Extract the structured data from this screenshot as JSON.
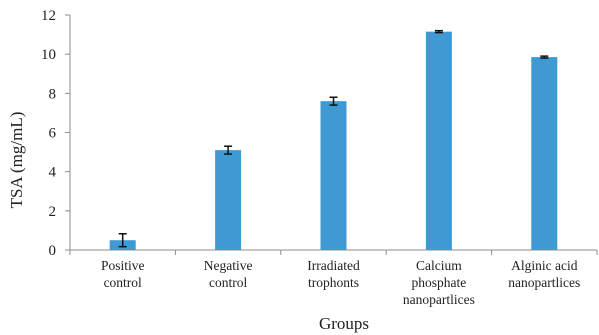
{
  "chart_data": {
    "type": "bar",
    "xlabel": "Groups",
    "ylabel": "TSA (mg/mL)",
    "ylim": [
      0,
      12
    ],
    "yticks": [
      "0",
      "2",
      "4",
      "6",
      "8",
      "10",
      "12"
    ],
    "grid": false,
    "legend": "none",
    "bar_color": "#3f9ad3",
    "errorbar_color": "#111111",
    "categories": [
      [
        "Positive",
        "control"
      ],
      [
        "Negative",
        "control"
      ],
      [
        "Irradiated",
        "trophonts"
      ],
      [
        "Calcium",
        "phosphate",
        "nanopartlices"
      ],
      [
        "Alginic acid",
        "nanopartlices"
      ]
    ],
    "values": [
      0.5,
      5.1,
      7.6,
      11.15,
      9.85
    ],
    "errors": [
      0.33,
      0.2,
      0.2,
      0.05,
      0.05
    ]
  }
}
